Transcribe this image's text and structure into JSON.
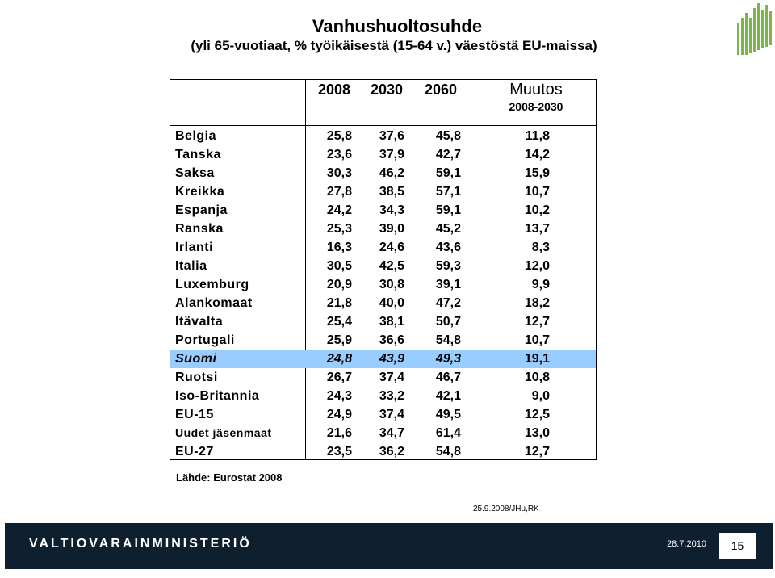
{
  "title": "Vanhushuoltosuhde",
  "subtitle": "(yli 65-vuotiaat, % työikäisestä (15-64 v.) väestöstä EU-maissa)",
  "table": {
    "headers": [
      "2008",
      "2030",
      "2060",
      "Muutos"
    ],
    "change_subheader": "2008-2030",
    "rows": [
      {
        "country": "Belgia",
        "y2008": "25,8",
        "y2030": "37,6",
        "y2060": "45,8",
        "change": "11,8"
      },
      {
        "country": "Tanska",
        "y2008": "23,6",
        "y2030": "37,9",
        "y2060": "42,7",
        "change": "14,2"
      },
      {
        "country": "Saksa",
        "y2008": "30,3",
        "y2030": "46,2",
        "y2060": "59,1",
        "change": "15,9"
      },
      {
        "country": "Kreikka",
        "y2008": "27,8",
        "y2030": "38,5",
        "y2060": "57,1",
        "change": "10,7"
      },
      {
        "country": "Espanja",
        "y2008": "24,2",
        "y2030": "34,3",
        "y2060": "59,1",
        "change": "10,2"
      },
      {
        "country": "Ranska",
        "y2008": "25,3",
        "y2030": "39,0",
        "y2060": "45,2",
        "change": "13,7"
      },
      {
        "country": "Irlanti",
        "y2008": "16,3",
        "y2030": "24,6",
        "y2060": "43,6",
        "change": "8,3"
      },
      {
        "country": "Italia",
        "y2008": "30,5",
        "y2030": "42,5",
        "y2060": "59,3",
        "change": "12,0"
      },
      {
        "country": "Luxemburg",
        "y2008": "20,9",
        "y2030": "30,8",
        "y2060": "39,1",
        "change": "9,9"
      },
      {
        "country": "Alankomaat",
        "y2008": "21,8",
        "y2030": "40,0",
        "y2060": "47,2",
        "change": "18,2"
      },
      {
        "country": "Itävalta",
        "y2008": "25,4",
        "y2030": "38,1",
        "y2060": "50,7",
        "change": "12,7"
      },
      {
        "country": "Portugali",
        "y2008": "25,9",
        "y2030": "36,6",
        "y2060": "54,8",
        "change": "10,7"
      },
      {
        "country": "Suomi",
        "y2008": "24,8",
        "y2030": "43,9",
        "y2060": "49,3",
        "change": "19,1"
      },
      {
        "country": "Ruotsi",
        "y2008": "26,7",
        "y2030": "37,4",
        "y2060": "46,7",
        "change": "10,8"
      },
      {
        "country": "Iso-Britannia",
        "y2008": "24,3",
        "y2030": "33,2",
        "y2060": "42,1",
        "change": "9,0"
      },
      {
        "country": "EU-15",
        "y2008": "24,9",
        "y2030": "37,4",
        "y2060": "49,5",
        "change": "12,5"
      },
      {
        "country": "Uudet jäsenmaat",
        "y2008": "21,6",
        "y2030": "34,7",
        "y2060": "61,4",
        "change": "13,0"
      },
      {
        "country": "EU-27",
        "y2008": "23,5",
        "y2030": "36,2",
        "y2060": "54,8",
        "change": "12,7"
      }
    ],
    "highlight_color": "#99ccff"
  },
  "source": "Lähde: Eurostat 2008",
  "date_note": "25.9.2008/JHu,RK",
  "footer": {
    "ministry": "VALTIOVARAINMINISTERIÖ",
    "date": "28.7.2010",
    "page": "15",
    "background": "#0e1f2f"
  },
  "logo_icon": "ministry-bar-logo-icon",
  "brand_green": "#7ab648"
}
